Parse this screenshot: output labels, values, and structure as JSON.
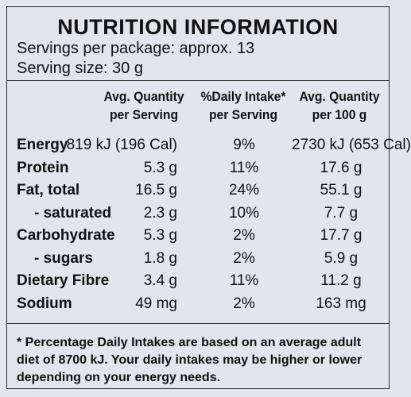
{
  "label": {
    "title": "NUTRITION INFORMATION",
    "servings_per_package": "Servings per package: approx. 13",
    "serving_size": "Serving size: 30 g"
  },
  "table": {
    "headers": [
      [
        "Avg. Quantity",
        "per Serving"
      ],
      [
        "%Daily Intake*",
        "per Serving"
      ],
      [
        "Avg. Quantity",
        "per 100 g"
      ]
    ],
    "rows": [
      {
        "nutrient": "Energy",
        "per_serving": "819 kJ (196 Cal)",
        "daily_intake": "9%",
        "per_100g": "2730 kJ (653 Cal)",
        "sub": false
      },
      {
        "nutrient": "Protein",
        "per_serving": "5.3 g",
        "daily_intake": "11%",
        "per_100g": "17.6 g",
        "sub": false
      },
      {
        "nutrient": "Fat, total",
        "per_serving": "16.5 g",
        "daily_intake": "24%",
        "per_100g": "55.1 g",
        "sub": false
      },
      {
        "nutrient": "- saturated",
        "per_serving": "2.3 g",
        "daily_intake": "10%",
        "per_100g": "7.7 g",
        "sub": true
      },
      {
        "nutrient": "Carbohydrate",
        "per_serving": "5.3 g",
        "daily_intake": "2%",
        "per_100g": "17.7 g",
        "sub": false
      },
      {
        "nutrient": "- sugars",
        "per_serving": "1.8 g",
        "daily_intake": "2%",
        "per_100g": "5.9 g",
        "sub": true
      },
      {
        "nutrient": "Dietary Fibre",
        "per_serving": "3.4 g",
        "daily_intake": "11%",
        "per_100g": "11.2 g",
        "sub": false
      },
      {
        "nutrient": "Sodium",
        "per_serving": "49 mg",
        "daily_intake": "2%",
        "per_100g": "163 mg",
        "sub": false
      }
    ]
  },
  "footnote": "* Percentage Daily Intakes are based on an average adult diet of 8700 kJ. Your daily intakes may be higher or lower depending on your energy needs."
}
